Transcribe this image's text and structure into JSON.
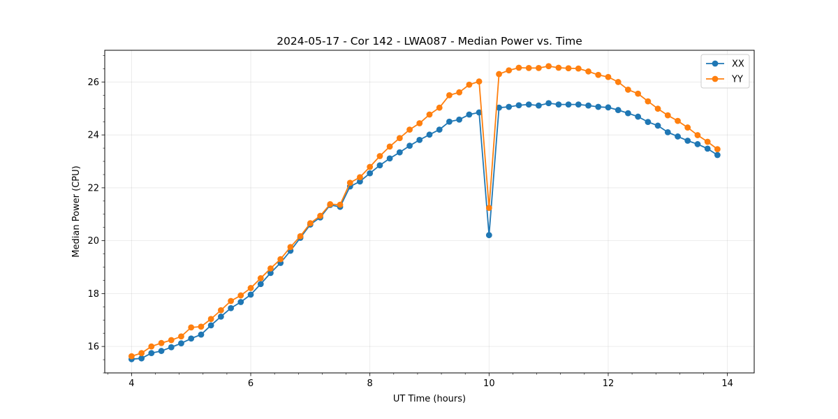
{
  "chart_data": {
    "type": "line",
    "title": "2024-05-17 - Cor 142 - LWA087 - Median Power vs. Time",
    "xlabel": "UT Time (hours)",
    "ylabel": "Median Power (CPU)",
    "xlim": [
      3.55,
      14.45
    ],
    "ylim": [
      15.0,
      27.2
    ],
    "xticks": [
      4,
      6,
      8,
      10,
      12,
      14
    ],
    "yticks": [
      16,
      18,
      20,
      22,
      24,
      26
    ],
    "grid": true,
    "legend_position": "top-right",
    "x": [
      4.0,
      4.167,
      4.333,
      4.5,
      4.667,
      4.833,
      5.0,
      5.167,
      5.333,
      5.5,
      5.667,
      5.833,
      6.0,
      6.167,
      6.333,
      6.5,
      6.667,
      6.833,
      7.0,
      7.167,
      7.333,
      7.5,
      7.667,
      7.833,
      8.0,
      8.167,
      8.333,
      8.5,
      8.667,
      8.833,
      9.0,
      9.167,
      9.333,
      9.5,
      9.667,
      9.833,
      10.0,
      10.167,
      10.333,
      10.5,
      10.667,
      10.833,
      11.0,
      11.167,
      11.333,
      11.5,
      11.667,
      11.833,
      12.0,
      12.167,
      12.333,
      12.5,
      12.667,
      12.833,
      13.0,
      13.167,
      13.333,
      13.5,
      13.667,
      13.833
    ],
    "series": [
      {
        "name": "XX",
        "color": "#1f77b4",
        "values": [
          15.52,
          15.55,
          15.75,
          15.83,
          15.97,
          16.12,
          16.3,
          16.45,
          16.8,
          17.13,
          17.45,
          17.68,
          17.96,
          18.36,
          18.78,
          19.16,
          19.62,
          20.11,
          20.61,
          20.88,
          21.35,
          21.28,
          22.05,
          22.24,
          22.55,
          22.85,
          23.11,
          23.34,
          23.59,
          23.81,
          24.01,
          24.2,
          24.5,
          24.58,
          24.77,
          24.85,
          20.21,
          25.03,
          25.06,
          25.12,
          25.15,
          25.11,
          25.2,
          25.15,
          25.15,
          25.15,
          25.11,
          25.06,
          25.04,
          24.94,
          24.82,
          24.69,
          24.49,
          24.35,
          24.1,
          23.94,
          23.78,
          23.65,
          23.48,
          23.24
        ]
      },
      {
        "name": "YY",
        "color": "#ff7f0e",
        "values": [
          15.63,
          15.75,
          16.0,
          16.13,
          16.24,
          16.38,
          16.72,
          16.75,
          17.04,
          17.37,
          17.72,
          17.93,
          18.21,
          18.58,
          18.95,
          19.3,
          19.76,
          20.17,
          20.66,
          20.94,
          21.38,
          21.36,
          22.19,
          22.4,
          22.79,
          23.2,
          23.56,
          23.88,
          24.2,
          24.44,
          24.77,
          25.03,
          25.5,
          25.61,
          25.9,
          26.02,
          21.24,
          26.3,
          26.44,
          26.54,
          26.53,
          26.53,
          26.6,
          26.54,
          26.52,
          26.51,
          26.4,
          26.27,
          26.19,
          26.0,
          25.71,
          25.56,
          25.27,
          24.99,
          24.74,
          24.53,
          24.28,
          23.99,
          23.74,
          23.46
        ]
      }
    ]
  }
}
